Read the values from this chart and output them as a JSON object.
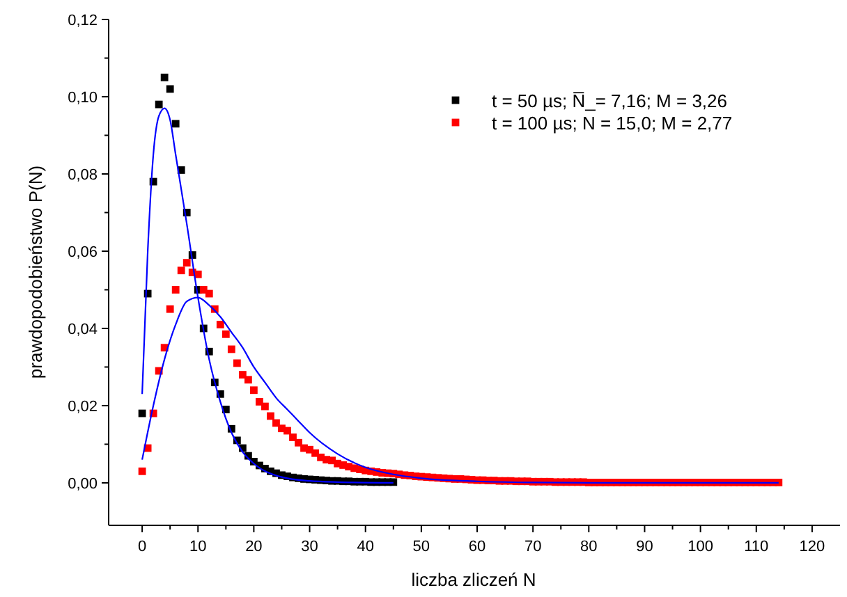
{
  "chart_data": {
    "type": "scatter",
    "xlabel": "liczba zliczeń N",
    "ylabel": "prawdopodobieństwo P(N)",
    "xlim": [
      -6,
      125
    ],
    "ylim": [
      -0.011,
      0.12
    ],
    "xticks": [
      0,
      {
        "value": 5,
        "label": null
      },
      10,
      {
        "value": 15,
        "label": null
      },
      20,
      {
        "value": 25,
        "label": null
      },
      30,
      {
        "value": 35,
        "label": null
      },
      40,
      {
        "value": 45,
        "label": null
      },
      50,
      {
        "value": 55,
        "label": null
      },
      60,
      {
        "value": 65,
        "label": null
      },
      70,
      {
        "value": 75,
        "label": null
      },
      80,
      {
        "value": 85,
        "label": null
      },
      90,
      {
        "value": 95,
        "label": null
      },
      100,
      {
        "value": 105,
        "label": null
      },
      110,
      {
        "value": 115,
        "label": null
      },
      120
    ],
    "yticks": [
      {
        "value": 0,
        "label": "0,00"
      },
      {
        "value": 0.01,
        "label": null
      },
      {
        "value": 0.02,
        "label": "0,02"
      },
      {
        "value": 0.03,
        "label": null
      },
      {
        "value": 0.04,
        "label": "0,04"
      },
      {
        "value": 0.05,
        "label": null
      },
      {
        "value": 0.06,
        "label": "0,06"
      },
      {
        "value": 0.07,
        "label": null
      },
      {
        "value": 0.08,
        "label": "0,08"
      },
      {
        "value": 0.09,
        "label": null
      },
      {
        "value": 0.1,
        "label": "0,10"
      },
      {
        "value": 0.11,
        "label": null
      },
      {
        "value": 0.12,
        "label": "0,12"
      }
    ],
    "grid": false,
    "legend": "top right",
    "marker": "square",
    "series": [
      {
        "name": "t = 50 µs; N̅_= 7,16; M = 3,26",
        "color": "#000000",
        "x": [
          0,
          1,
          2,
          3,
          4,
          5,
          6,
          7,
          8,
          9,
          10,
          11,
          12,
          13,
          14,
          15,
          16,
          17,
          18,
          19,
          20,
          21,
          22,
          23,
          24,
          25,
          26,
          27,
          28,
          29,
          30,
          31,
          32,
          33,
          34,
          35,
          36,
          37,
          38,
          39,
          40,
          41,
          42,
          43,
          44,
          45
        ],
        "values": [
          0.018,
          0.049,
          0.078,
          0.098,
          0.105,
          0.102,
          0.093,
          0.081,
          0.07,
          0.059,
          0.05,
          0.04,
          0.034,
          0.026,
          0.023,
          0.019,
          0.014,
          0.011,
          0.009,
          0.007,
          0.0055,
          0.0045,
          0.0037,
          0.003,
          0.0025,
          0.002,
          0.0017,
          0.0014,
          0.0012,
          0.001,
          0.0009,
          0.0008,
          0.0007,
          0.0006,
          0.0005,
          0.0005,
          0.0004,
          0.0004,
          0.0003,
          0.0003,
          0.0003,
          0.0002,
          0.0002,
          0.0002,
          0.0002,
          0.0002
        ]
      },
      {
        "name": "t = 100 µs; N = 15,0; M = 2,77",
        "color": "#ff0000",
        "x": [
          0,
          1,
          2,
          3,
          4,
          5,
          6,
          7,
          8,
          9,
          10,
          11,
          12,
          13,
          14,
          15,
          16,
          17,
          18,
          19,
          20,
          21,
          22,
          23,
          24,
          25,
          26,
          27,
          28,
          29,
          30,
          31,
          32,
          33,
          34,
          35,
          36,
          37,
          38,
          39,
          40,
          41,
          42,
          43,
          44,
          45,
          46,
          47,
          48,
          49,
          50,
          51,
          52,
          53,
          54,
          55,
          56,
          57,
          58,
          59,
          60,
          61,
          62,
          63,
          64,
          65,
          66,
          67,
          68,
          69,
          70,
          71,
          72,
          73,
          74,
          75,
          76,
          77,
          78,
          79,
          80,
          81,
          82,
          83,
          84,
          85,
          86,
          87,
          88,
          89,
          90,
          91,
          92,
          93,
          94,
          95,
          96,
          97,
          98,
          99,
          100,
          101,
          102,
          103,
          104,
          105,
          106,
          107,
          108,
          109,
          110,
          111,
          112,
          113,
          114
        ],
        "values": [
          0.003,
          0.009,
          0.018,
          0.029,
          0.035,
          0.045,
          0.05,
          0.055,
          0.057,
          0.0545,
          0.054,
          0.05,
          0.049,
          0.045,
          0.041,
          0.0385,
          0.0346,
          0.031,
          0.028,
          0.0267,
          0.024,
          0.021,
          0.0198,
          0.0173,
          0.0155,
          0.0141,
          0.0135,
          0.0118,
          0.0104,
          0.009,
          0.0086,
          0.0077,
          0.0066,
          0.006,
          0.0058,
          0.005,
          0.0046,
          0.0042,
          0.0038,
          0.0035,
          0.0032,
          0.003,
          0.0028,
          0.0026,
          0.0025,
          0.0024,
          0.0022,
          0.002,
          0.0019,
          0.0017,
          0.0016,
          0.0015,
          0.0014,
          0.0013,
          0.0012,
          0.0011,
          0.001,
          0.001,
          0.0009,
          0.0008,
          0.0007,
          0.0007,
          0.0006,
          0.0006,
          0.0005,
          0.0005,
          0.0005,
          0.0004,
          0.0004,
          0.0004,
          0.0003,
          0.0003,
          0.0003,
          0.0003,
          0.0002,
          0.0002,
          0.0002,
          0.0002,
          0.0002,
          0.0002,
          0.0001,
          0.0001,
          0.0001,
          0.0001,
          0.0001,
          0.0001,
          0.0001,
          0.0001,
          0.0001,
          0.0001,
          0.0001,
          0.0001,
          0.0001,
          0.0001,
          0.0001,
          0.0001,
          0.0001,
          0.0001,
          0.0001,
          0.0001,
          0.0001,
          0.0001,
          0.0001,
          0.0001,
          0.0001,
          0.0001,
          0.0001,
          0.0001,
          0.0001,
          0.0001,
          0.0001,
          0.0001,
          0.0001,
          0.0001,
          0.0001
        ]
      },
      {
        "color": "#0000ff",
        "type": "line",
        "marker": "none",
        "x": [
          0,
          1,
          2,
          3,
          4,
          5,
          6,
          8,
          10,
          12,
          14,
          16,
          18,
          20,
          25,
          30,
          35,
          45
        ],
        "values": [
          0.023,
          0.06,
          0.085,
          0.095,
          0.097,
          0.094,
          0.085,
          0.067,
          0.048,
          0.032,
          0.021,
          0.013,
          0.008,
          0.005,
          0.0015,
          0.0005,
          0.0002,
          0
        ]
      },
      {
        "color": "#0000ff",
        "type": "line",
        "marker": "none",
        "x": [
          0,
          2,
          4,
          6,
          8,
          10,
          12,
          14,
          16,
          18,
          20,
          22,
          24,
          26,
          28,
          30,
          35,
          40,
          45,
          50,
          60,
          70,
          80,
          114
        ],
        "values": [
          0.006,
          0.02,
          0.032,
          0.041,
          0.047,
          0.048,
          0.046,
          0.043,
          0.039,
          0.035,
          0.03,
          0.026,
          0.022,
          0.019,
          0.016,
          0.013,
          0.0075,
          0.004,
          0.0022,
          0.0012,
          0.0004,
          0.0001,
          0,
          0
        ]
      }
    ]
  }
}
